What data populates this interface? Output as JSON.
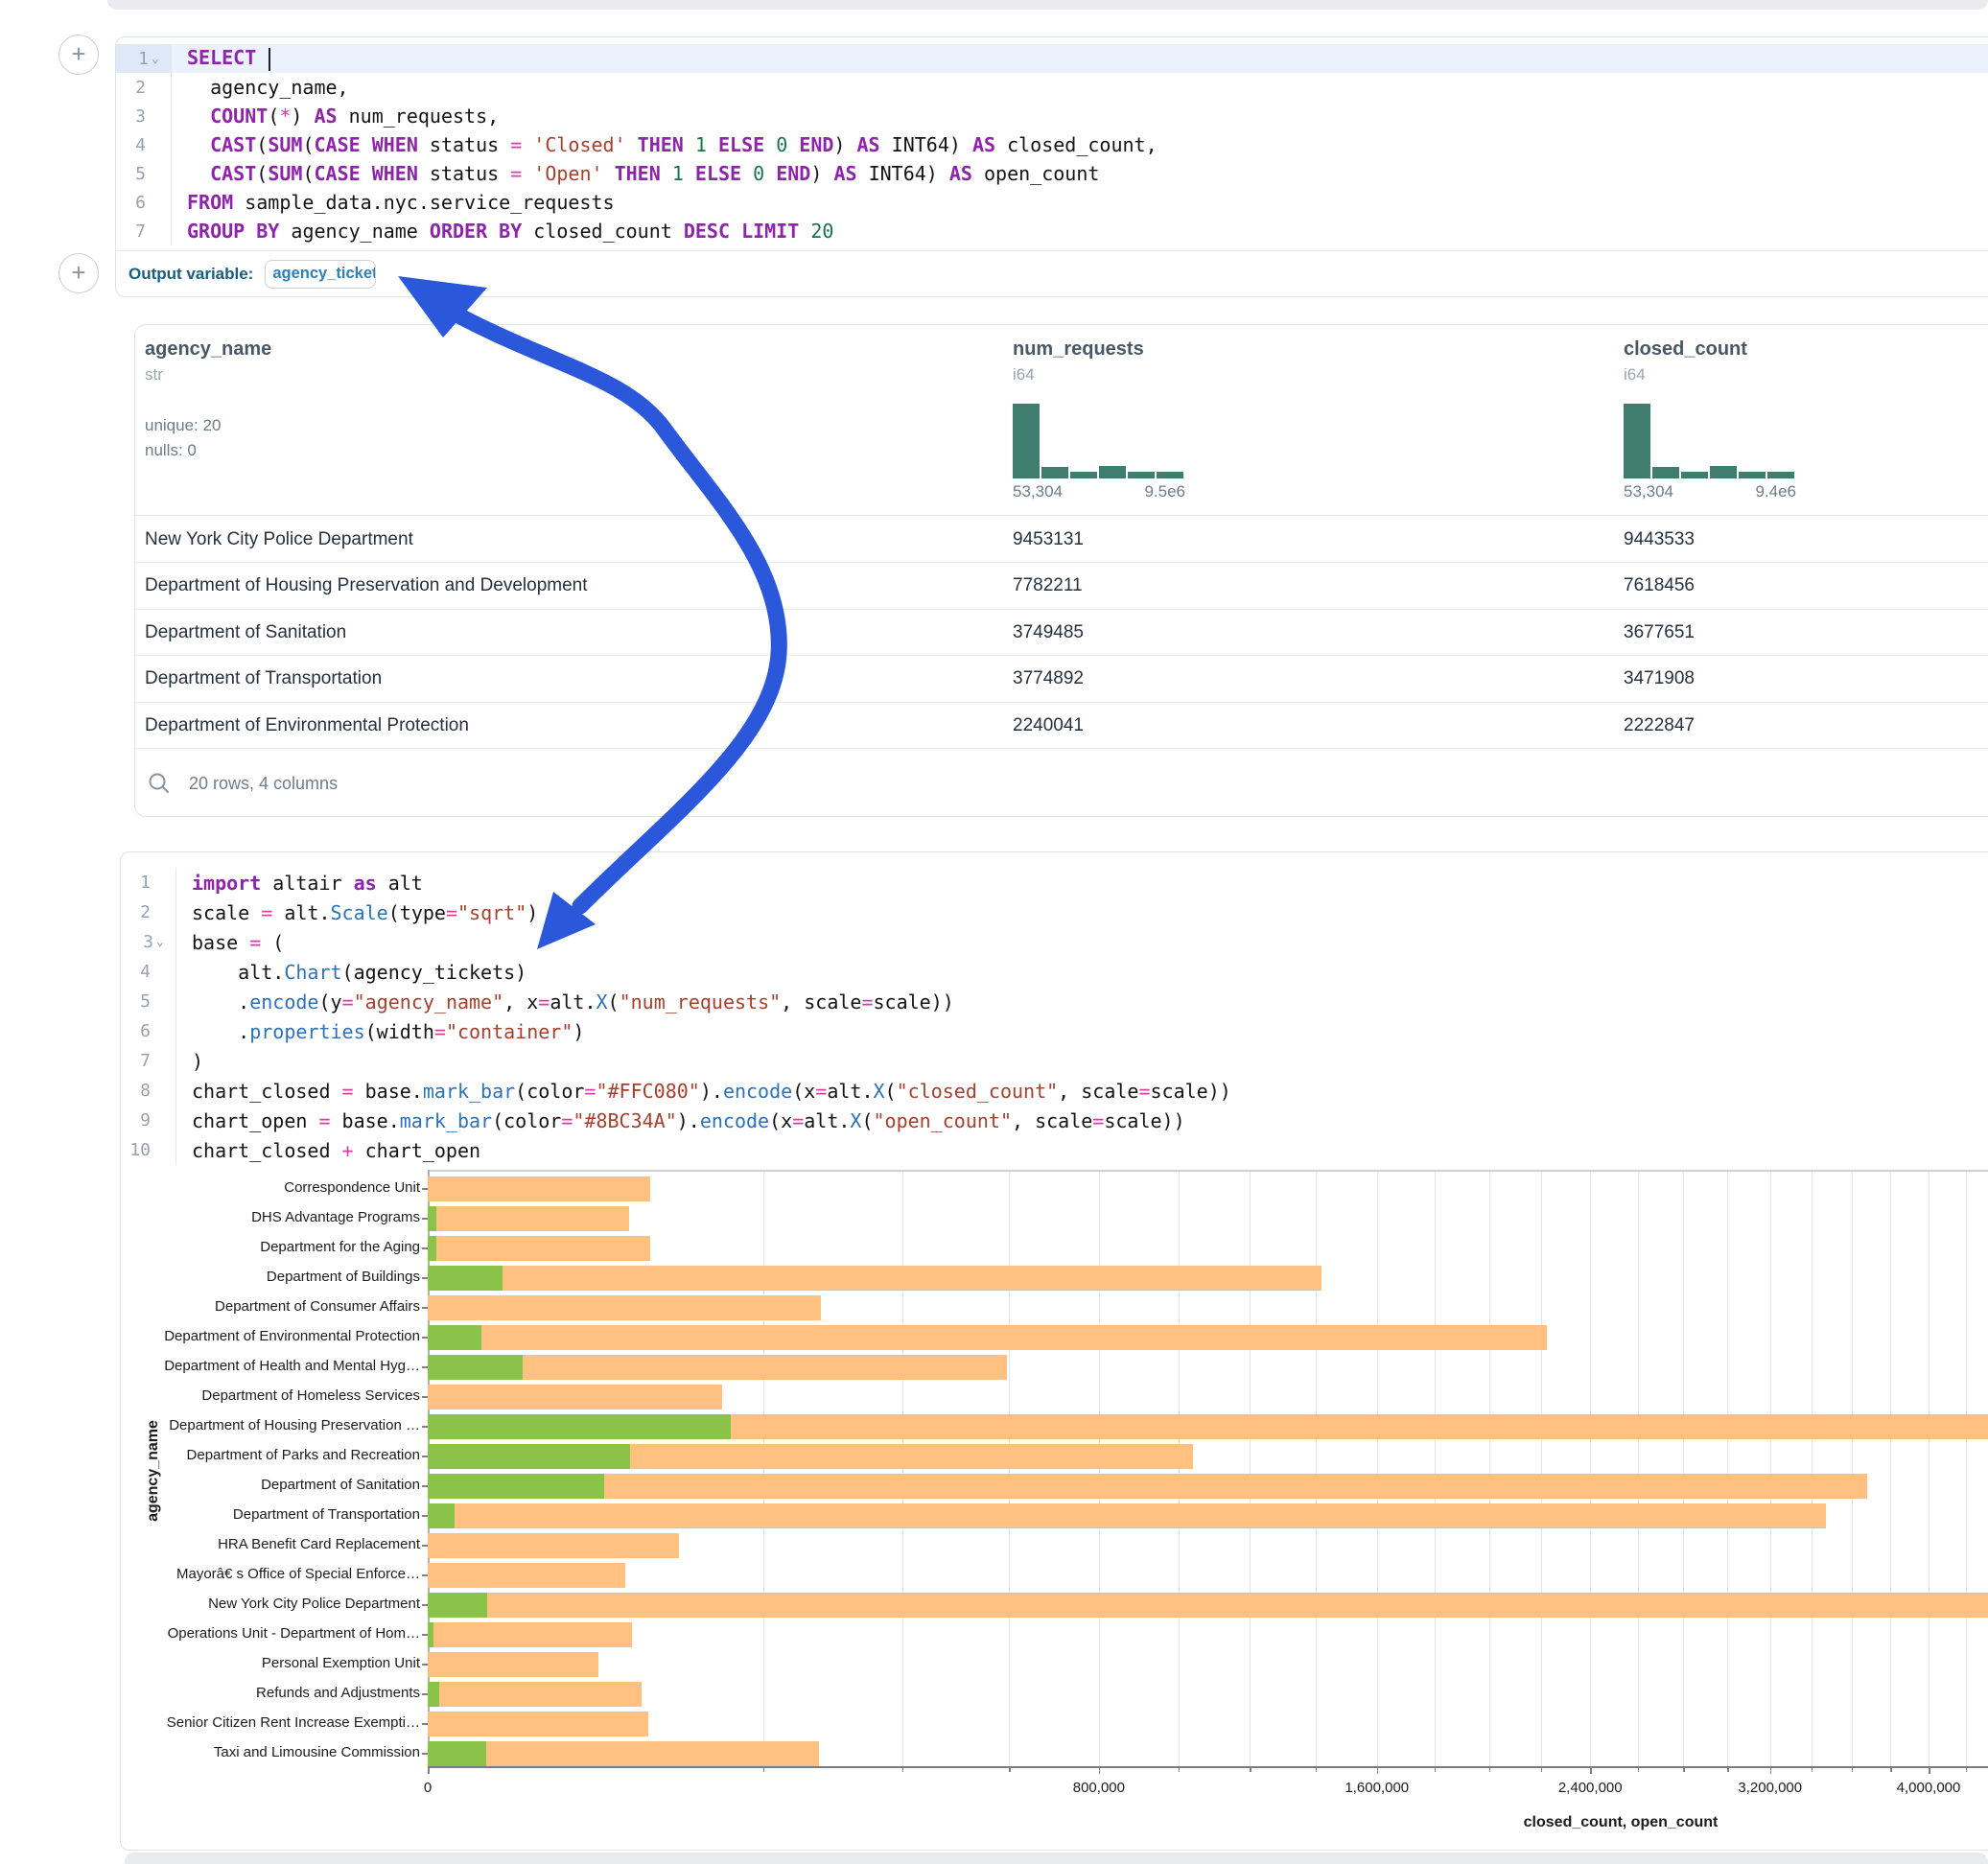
{
  "colors": {
    "bar_closed": "#FFC080",
    "bar_open": "#8BC34A",
    "histogram": "#3F7E6E",
    "arrow_blue": "#2B57DB",
    "keyword_purple": "#8E24AA",
    "string_red": "#A5402D",
    "number_green": "#17754C",
    "operator_pink": "#D63CA6",
    "function_blue": "#2D72B8"
  },
  "plus_buttons": {
    "label": "+"
  },
  "sql_cell": {
    "lines": [
      {
        "no": "1",
        "fold": true,
        "highlight": true,
        "caret": true,
        "tokens": [
          [
            "k",
            "SELECT"
          ],
          [
            "p",
            " "
          ]
        ]
      },
      {
        "no": "2",
        "tokens": [
          [
            "p",
            "  agency_name,"
          ]
        ]
      },
      {
        "no": "3",
        "tokens": [
          [
            "p",
            "  "
          ],
          [
            "k",
            "COUNT"
          ],
          [
            "p",
            "("
          ],
          [
            "o",
            "*"
          ],
          [
            "p",
            ") "
          ],
          [
            "k",
            "AS"
          ],
          [
            "p",
            " num_requests,"
          ]
        ]
      },
      {
        "no": "4",
        "tokens": [
          [
            "p",
            "  "
          ],
          [
            "k",
            "CAST"
          ],
          [
            "p",
            "("
          ],
          [
            "k",
            "SUM"
          ],
          [
            "p",
            "("
          ],
          [
            "k",
            "CASE"
          ],
          [
            "p",
            " "
          ],
          [
            "k",
            "WHEN"
          ],
          [
            "p",
            " status "
          ],
          [
            "o",
            "="
          ],
          [
            "p",
            " "
          ],
          [
            "s",
            "'Closed'"
          ],
          [
            "p",
            " "
          ],
          [
            "k",
            "THEN"
          ],
          [
            "p",
            " "
          ],
          [
            "n",
            "1"
          ],
          [
            "p",
            " "
          ],
          [
            "k",
            "ELSE"
          ],
          [
            "p",
            " "
          ],
          [
            "n",
            "0"
          ],
          [
            "p",
            " "
          ],
          [
            "k",
            "END"
          ],
          [
            "p",
            ") "
          ],
          [
            "k",
            "AS"
          ],
          [
            "p",
            " INT64) "
          ],
          [
            "k",
            "AS"
          ],
          [
            "p",
            " closed_count,"
          ]
        ]
      },
      {
        "no": "5",
        "tokens": [
          [
            "p",
            "  "
          ],
          [
            "k",
            "CAST"
          ],
          [
            "p",
            "("
          ],
          [
            "k",
            "SUM"
          ],
          [
            "p",
            "("
          ],
          [
            "k",
            "CASE"
          ],
          [
            "p",
            " "
          ],
          [
            "k",
            "WHEN"
          ],
          [
            "p",
            " status "
          ],
          [
            "o",
            "="
          ],
          [
            "p",
            " "
          ],
          [
            "s",
            "'Open'"
          ],
          [
            "p",
            " "
          ],
          [
            "k",
            "THEN"
          ],
          [
            "p",
            " "
          ],
          [
            "n",
            "1"
          ],
          [
            "p",
            " "
          ],
          [
            "k",
            "ELSE"
          ],
          [
            "p",
            " "
          ],
          [
            "n",
            "0"
          ],
          [
            "p",
            " "
          ],
          [
            "k",
            "END"
          ],
          [
            "p",
            ") "
          ],
          [
            "k",
            "AS"
          ],
          [
            "p",
            " INT64) "
          ],
          [
            "k",
            "AS"
          ],
          [
            "p",
            " open_count"
          ]
        ]
      },
      {
        "no": "6",
        "tokens": [
          [
            "k",
            "FROM"
          ],
          [
            "p",
            " sample_data.nyc.service_requests"
          ]
        ]
      },
      {
        "no": "7",
        "tokens": [
          [
            "k",
            "GROUP"
          ],
          [
            "p",
            " "
          ],
          [
            "k",
            "BY"
          ],
          [
            "p",
            " agency_name "
          ],
          [
            "k",
            "ORDER"
          ],
          [
            "p",
            " "
          ],
          [
            "k",
            "BY"
          ],
          [
            "p",
            " closed_count "
          ],
          [
            "k",
            "DESC"
          ],
          [
            "p",
            " "
          ],
          [
            "k",
            "LIMIT"
          ],
          [
            "p",
            " "
          ],
          [
            "n",
            "20"
          ]
        ]
      }
    ],
    "output_label": "Output variable:",
    "output_variable": "agency_tickets"
  },
  "table": {
    "columns": [
      {
        "name": "agency_name",
        "type": "str",
        "stats": [
          "unique: 20",
          "nulls: 0"
        ]
      },
      {
        "name": "num_requests",
        "type": "i64",
        "hist": {
          "bars": [
            1,
            0.156,
            0.09,
            0.17,
            0.09,
            0.09
          ],
          "min": "53,304",
          "max": "9.5e6"
        }
      },
      {
        "name": "closed_count",
        "type": "i64",
        "hist": {
          "bars": [
            1,
            0.156,
            0.09,
            0.17,
            0.09,
            0.09
          ],
          "min": "53,304",
          "max": "9.4e6"
        }
      }
    ],
    "rows": [
      [
        "New York City Police Department",
        "9453131",
        "9443533"
      ],
      [
        "Department of Housing Preservation and Development",
        "7782211",
        "7618456"
      ],
      [
        "Department of Sanitation",
        "3749485",
        "3677651"
      ],
      [
        "Department of Transportation",
        "3774892",
        "3471908"
      ],
      [
        "Department of Environmental Protection",
        "2240041",
        "2222847"
      ]
    ],
    "footer": "20 rows, 4 columns"
  },
  "py_cell": {
    "lines": [
      {
        "no": "1",
        "tokens": [
          [
            "k",
            "import"
          ],
          [
            "p",
            " altair "
          ],
          [
            "k",
            "as"
          ],
          [
            "p",
            " alt"
          ]
        ]
      },
      {
        "no": "2",
        "tokens": [
          [
            "p",
            "scale "
          ],
          [
            "o",
            "="
          ],
          [
            "p",
            " alt."
          ],
          [
            "f",
            "Scale"
          ],
          [
            "p",
            "(type"
          ],
          [
            "o",
            "="
          ],
          [
            "s",
            "\"sqrt\""
          ],
          [
            "p",
            ")"
          ]
        ]
      },
      {
        "no": "3",
        "fold": true,
        "tokens": [
          [
            "p",
            "base "
          ],
          [
            "o",
            "="
          ],
          [
            "p",
            " ("
          ]
        ]
      },
      {
        "no": "4",
        "tokens": [
          [
            "p",
            "    alt."
          ],
          [
            "f",
            "Chart"
          ],
          [
            "p",
            "(agency_tickets)"
          ]
        ]
      },
      {
        "no": "5",
        "tokens": [
          [
            "p",
            "    ."
          ],
          [
            "f",
            "encode"
          ],
          [
            "p",
            "(y"
          ],
          [
            "o",
            "="
          ],
          [
            "s",
            "\"agency_name\""
          ],
          [
            "p",
            ", x"
          ],
          [
            "o",
            "="
          ],
          [
            "p",
            "alt."
          ],
          [
            "f",
            "X"
          ],
          [
            "p",
            "("
          ],
          [
            "s",
            "\"num_requests\""
          ],
          [
            "p",
            ", scale"
          ],
          [
            "o",
            "="
          ],
          [
            "p",
            "scale))"
          ]
        ]
      },
      {
        "no": "6",
        "tokens": [
          [
            "p",
            "    ."
          ],
          [
            "f",
            "properties"
          ],
          [
            "p",
            "(width"
          ],
          [
            "o",
            "="
          ],
          [
            "s",
            "\"container\""
          ],
          [
            "p",
            ")"
          ]
        ]
      },
      {
        "no": "7",
        "tokens": [
          [
            "p",
            ")"
          ]
        ]
      },
      {
        "no": "8",
        "tokens": [
          [
            "p",
            "chart_closed "
          ],
          [
            "o",
            "="
          ],
          [
            "p",
            " base."
          ],
          [
            "f",
            "mark_bar"
          ],
          [
            "p",
            "(color"
          ],
          [
            "o",
            "="
          ],
          [
            "s",
            "\"#FFC080\""
          ],
          [
            "p",
            ")."
          ],
          [
            "f",
            "encode"
          ],
          [
            "p",
            "(x"
          ],
          [
            "o",
            "="
          ],
          [
            "p",
            "alt."
          ],
          [
            "f",
            "X"
          ],
          [
            "p",
            "("
          ],
          [
            "s",
            "\"closed_count\""
          ],
          [
            "p",
            ", scale"
          ],
          [
            "o",
            "="
          ],
          [
            "p",
            "scale))"
          ]
        ]
      },
      {
        "no": "9",
        "tokens": [
          [
            "p",
            "chart_open "
          ],
          [
            "o",
            "="
          ],
          [
            "p",
            " base."
          ],
          [
            "f",
            "mark_bar"
          ],
          [
            "p",
            "(color"
          ],
          [
            "o",
            "="
          ],
          [
            "s",
            "\"#8BC34A\""
          ],
          [
            "p",
            ")."
          ],
          [
            "f",
            "encode"
          ],
          [
            "p",
            "(x"
          ],
          [
            "o",
            "="
          ],
          [
            "p",
            "alt."
          ],
          [
            "f",
            "X"
          ],
          [
            "p",
            "("
          ],
          [
            "s",
            "\"open_count\""
          ],
          [
            "p",
            ", scale"
          ],
          [
            "o",
            "="
          ],
          [
            "p",
            "scale))"
          ]
        ]
      },
      {
        "no": "10",
        "tokens": [
          [
            "p",
            "chart_closed "
          ],
          [
            "o",
            "+"
          ],
          [
            "p",
            " chart_open"
          ]
        ]
      }
    ]
  },
  "chart_data": {
    "type": "bar",
    "orientation": "horizontal",
    "x_scale": "sqrt",
    "xlabel": "closed_count, open_count",
    "ylabel": "agency_name",
    "grid": true,
    "grid_step": 200000,
    "x_tick_values": [
      0,
      800000,
      1600000,
      2400000,
      3200000,
      4000000
    ],
    "x_tick_labels": [
      "0",
      "800,000",
      "1,600,000",
      "2,400,000",
      "3,200,000",
      "4,000,000"
    ],
    "categories": [
      "Correspondence Unit",
      "DHS Advantage Programs",
      "Department for the Aging",
      "Department of Buildings",
      "Department of Consumer Affairs",
      "Department of Environmental Protection",
      "Department of Health and Mental Hyg…",
      "Department of Homeless Services",
      "Department of Housing Preservation …",
      "Department of Parks and Recreation",
      "Department of Sanitation",
      "Department of Transportation",
      "HRA Benefit Card Replacement",
      "Mayorâ€ s Office of Special Enforce…",
      "New York City Police Department",
      "Operations Unit - Department of Hom…",
      "Personal Exemption Unit",
      "Refunds and Adjustments",
      "Senior Citizen Rent Increase Exempti…",
      "Taxi and Limousine Commission"
    ],
    "series": [
      {
        "name": "closed_count",
        "color": "#FFC080",
        "values": [
          88000,
          72000,
          88000,
          1420000,
          275000,
          2222847,
          595000,
          154000,
          7618456,
          1040000,
          3677651,
          3471908,
          112000,
          69000,
          9443533,
          74000,
          52000,
          81000,
          86500,
          272000
        ]
      },
      {
        "name": "open_count",
        "color": "#8BC34A",
        "values": [
          0,
          120,
          120,
          10000,
          0,
          5100,
          16000,
          0,
          163000,
          73000,
          55000,
          1300,
          0,
          0,
          6300,
          60,
          0,
          250,
          0,
          6100
        ]
      }
    ]
  }
}
